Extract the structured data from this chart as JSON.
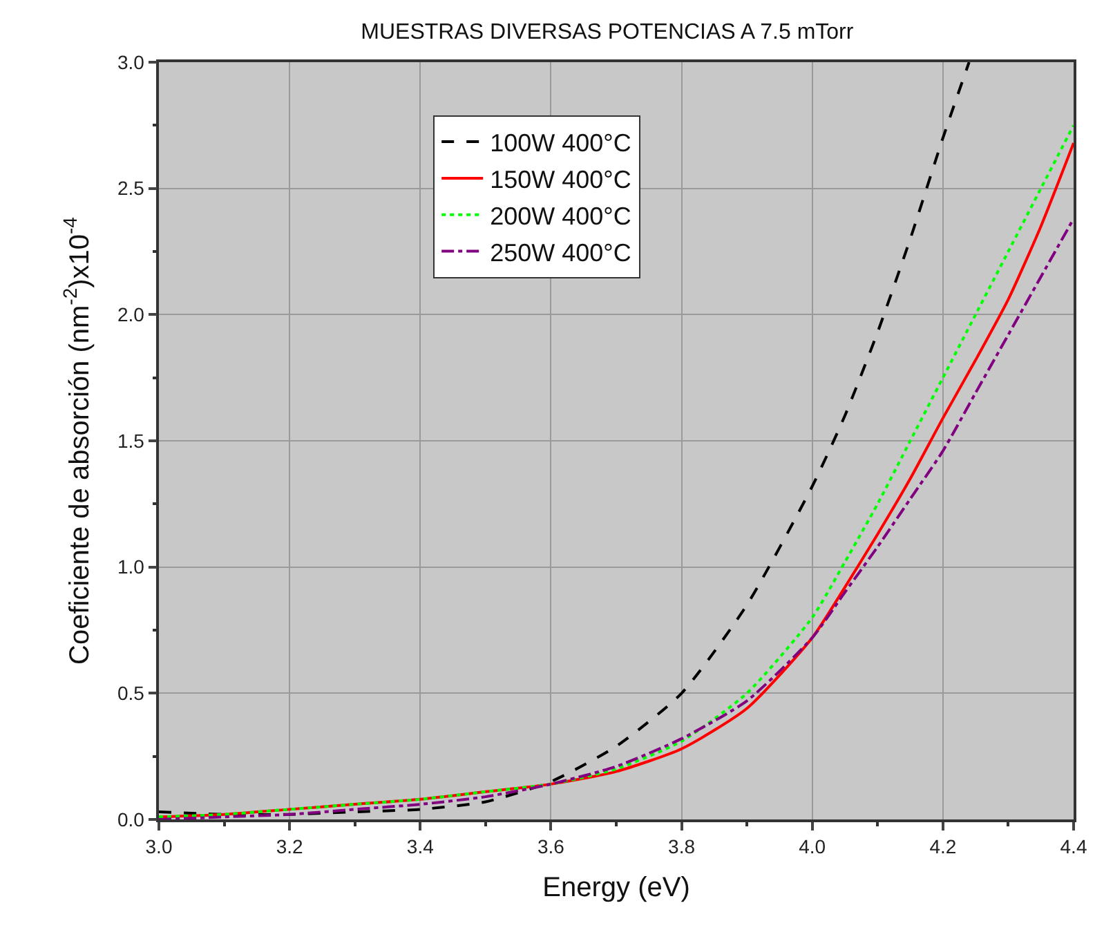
{
  "chart_data": {
    "type": "line",
    "title": "MUESTRAS DIVERSAS POTENCIAS A 7.5 mTorr",
    "xlabel": "Energy (eV)",
    "ylabel": "Coeficiente de absorción (nm$^{-2}$)x10$^{-4}$",
    "x": [
      3.0,
      3.1,
      3.2,
      3.3,
      3.4,
      3.5,
      3.6,
      3.7,
      3.8,
      3.9,
      4.0,
      4.05,
      4.1,
      4.15,
      4.2,
      4.25,
      4.3,
      4.35,
      4.4
    ],
    "series": [
      {
        "name": "100W 400°C",
        "color": "#000000",
        "line_style": "dashed",
        "x": [
          3.0,
          3.1,
          3.2,
          3.3,
          3.4,
          3.5,
          3.6,
          3.7,
          3.8,
          3.9,
          4.0,
          4.05,
          4.1,
          4.15,
          4.2,
          4.24
        ],
        "values": [
          0.03,
          0.02,
          0.02,
          0.03,
          0.04,
          0.07,
          0.15,
          0.29,
          0.5,
          0.85,
          1.32,
          1.6,
          1.93,
          2.3,
          2.7,
          3.0
        ]
      },
      {
        "name": "150W 400°C",
        "color": "#ff0000",
        "line_style": "solid",
        "values": [
          0.01,
          0.02,
          0.04,
          0.06,
          0.08,
          0.11,
          0.14,
          0.19,
          0.28,
          0.44,
          0.72,
          0.92,
          1.13,
          1.35,
          1.59,
          1.82,
          2.06,
          2.35,
          2.68
        ]
      },
      {
        "name": "200W 400°C",
        "color": "#00ff00",
        "line_style": "dotted",
        "values": [
          0.01,
          0.02,
          0.04,
          0.06,
          0.08,
          0.11,
          0.14,
          0.2,
          0.31,
          0.5,
          0.8,
          1.02,
          1.25,
          1.5,
          1.75,
          2.0,
          2.25,
          2.5,
          2.75
        ]
      },
      {
        "name": "250W 400°C",
        "color": "#800080",
        "line_style": "dashdot",
        "values": [
          0.0,
          0.01,
          0.02,
          0.04,
          0.06,
          0.09,
          0.14,
          0.21,
          0.32,
          0.47,
          0.72,
          0.9,
          1.08,
          1.27,
          1.46,
          1.69,
          1.92,
          2.15,
          2.38
        ]
      }
    ],
    "xlim": [
      3.0,
      4.4
    ],
    "ylim": [
      0.0,
      3.0
    ],
    "xticks": [
      {
        "value": 3.0,
        "label": "3.0"
      },
      3.2,
      3.4,
      3.6,
      3.8,
      {
        "value": 4.0,
        "label": "4.0"
      },
      4.2,
      4.4
    ],
    "yticks": [
      {
        "value": 0.0,
        "label": "0.0"
      },
      0.5,
      {
        "value": 1.0,
        "label": "1.0"
      },
      1.5,
      {
        "value": 2.0,
        "label": "2.0"
      },
      2.5,
      {
        "value": 3.0,
        "label": "3.0"
      }
    ],
    "grid": true,
    "legend": "top",
    "marker": "none"
  }
}
